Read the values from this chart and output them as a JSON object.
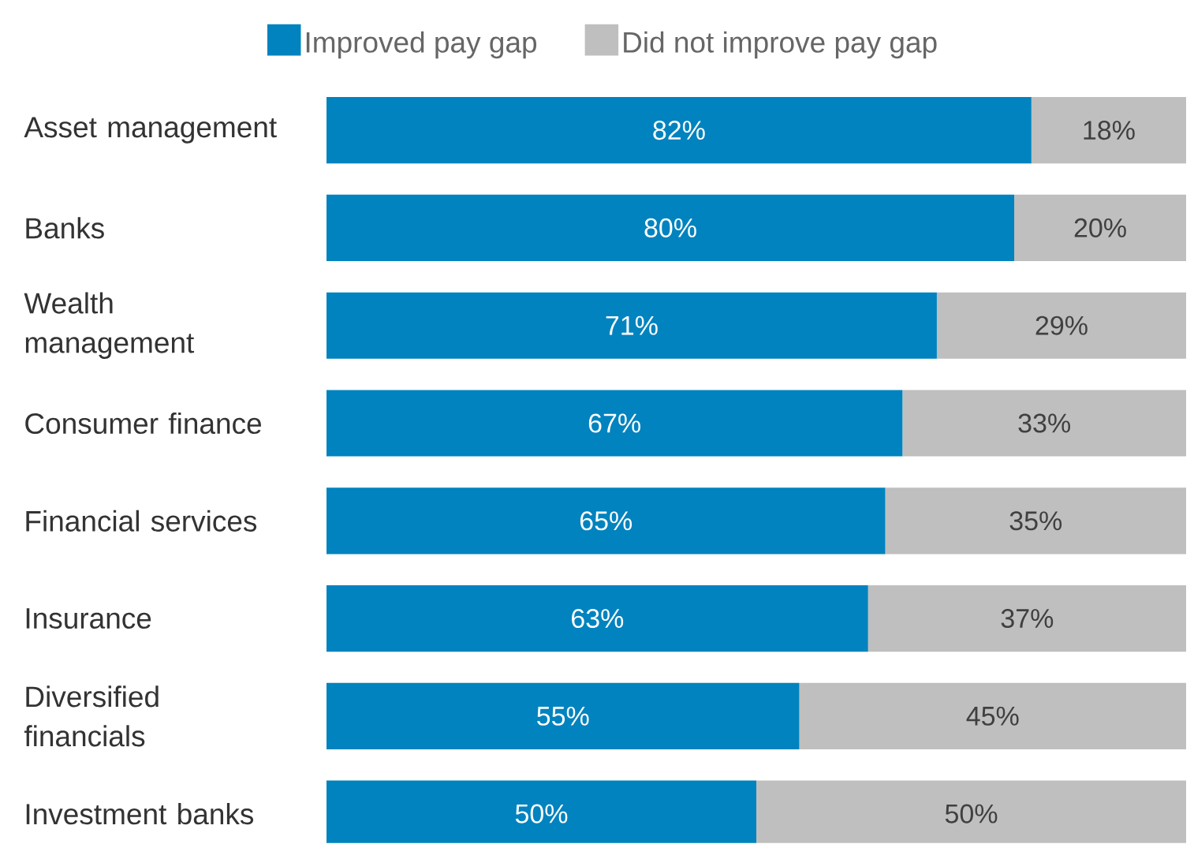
{
  "chart_data": {
    "type": "bar",
    "orientation": "horizontal",
    "stacked": true,
    "xlim": [
      0,
      100
    ],
    "tick_labels": "y",
    "legend": "top",
    "data_labels": true,
    "categories": [
      "Asset management",
      "Banks",
      "Wealth management",
      "Consumer finance",
      "Financial services",
      "Insurance",
      "Diversified financials",
      "Investment banks"
    ],
    "series": [
      {
        "name": "Improved pay gap",
        "color": "#0083be",
        "values": [
          82,
          80,
          71,
          67,
          65,
          63,
          55,
          50
        ],
        "value_labels": [
          "82%",
          "80%",
          "71%",
          "67%",
          "65%",
          "63%",
          "55%",
          "50%"
        ]
      },
      {
        "name": "Did not improve pay gap",
        "color": "#bfbfbf",
        "values": [
          18,
          20,
          29,
          33,
          35,
          37,
          45,
          50
        ],
        "value_labels": [
          "18%",
          "20%",
          "29%",
          "33%",
          "35%",
          "37%",
          "45%",
          "50%"
        ]
      }
    ]
  }
}
